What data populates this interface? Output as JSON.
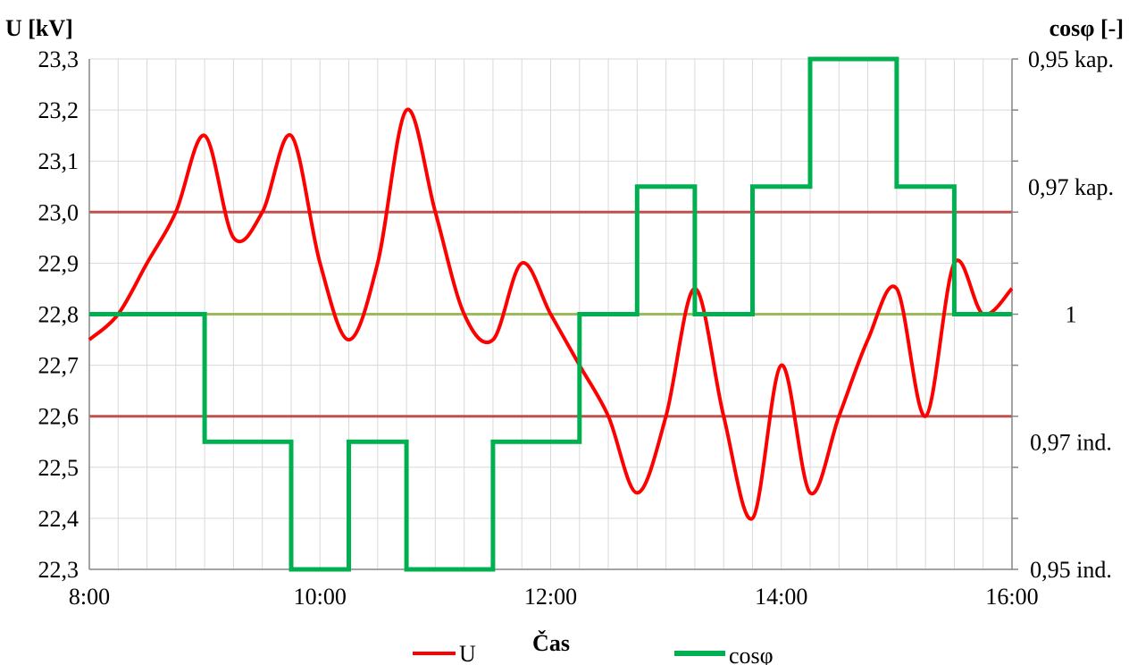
{
  "chart_data": {
    "type": "line",
    "y_left_label": "U [kV]",
    "y_right_label": "cosφ [-]",
    "x_label": "Čas",
    "x_tick_labels": [
      "8:00",
      "10:00",
      "12:00",
      "14:00",
      "16:00"
    ],
    "x_range_hours": [
      8,
      16
    ],
    "y_left_ticks": [
      "23,3",
      "23,2",
      "23,1",
      "23,0",
      "22,9",
      "22,8",
      "22,7",
      "22,6",
      "22,5",
      "22,4",
      "22,3"
    ],
    "y_left_range": [
      22.3,
      23.3
    ],
    "y_right_tick_labels": [
      "0,95 kap.",
      "0,97 kap.",
      "1",
      "0,97 ind.",
      "0,95 ind."
    ],
    "grid": true,
    "reference_lines": [
      {
        "value": 23.0,
        "color": "#c0504d"
      },
      {
        "value": 22.8,
        "color": "#9bbb59"
      },
      {
        "value": 22.6,
        "color": "#c0504d"
      }
    ],
    "series": [
      {
        "name": "U",
        "axis": "left",
        "color": "#ff0000",
        "x": [
          "8:00",
          "8:15",
          "8:30",
          "8:45",
          "9:00",
          "9:15",
          "9:30",
          "9:45",
          "10:00",
          "10:15",
          "10:30",
          "10:45",
          "11:00",
          "11:15",
          "11:30",
          "11:45",
          "12:00",
          "12:15",
          "12:30",
          "12:45",
          "13:00",
          "13:15",
          "13:30",
          "13:45",
          "14:00",
          "14:15",
          "14:30",
          "14:45",
          "15:00",
          "15:15",
          "15:30",
          "15:45",
          "16:00"
        ],
        "values": [
          22.75,
          22.8,
          22.9,
          23.0,
          23.15,
          22.95,
          23.0,
          23.15,
          22.9,
          22.75,
          22.9,
          23.2,
          23.0,
          22.8,
          22.75,
          22.9,
          22.8,
          22.7,
          22.6,
          22.45,
          22.6,
          22.85,
          22.6,
          22.4,
          22.7,
          22.45,
          22.6,
          22.75,
          22.85,
          22.6,
          22.9,
          22.8,
          22.85
        ]
      },
      {
        "name": "cosφ",
        "axis": "right",
        "color": "#00b050",
        "step": true,
        "x": [
          "8:00",
          "9:00",
          "9:45",
          "10:15",
          "10:45",
          "11:30",
          "12:15",
          "12:45",
          "13:15",
          "13:45",
          "14:15",
          "15:00",
          "15:30",
          "16:00"
        ],
        "values": [
          "1",
          "0,97 ind.",
          "0,95 ind.",
          "0,97 ind.",
          "0,95 ind.",
          "0,97 ind.",
          "1",
          "0,97 kap.",
          "1",
          "0,97 kap.",
          "0,95 kap.",
          "0,97 kap.",
          "1",
          "1"
        ]
      }
    ],
    "legend": {
      "position": "bottom",
      "entries": [
        "U",
        "cosφ"
      ]
    }
  }
}
